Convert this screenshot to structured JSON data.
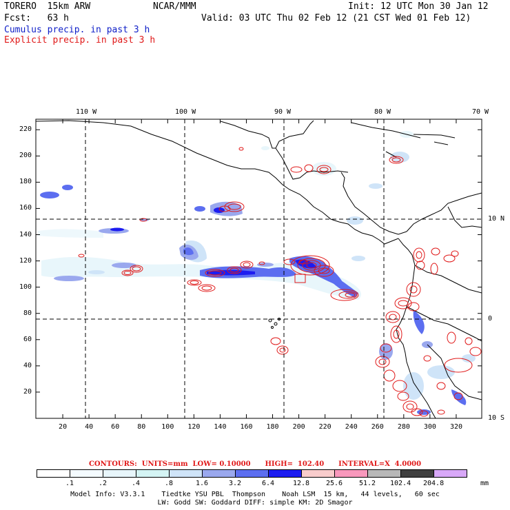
{
  "header": {
    "model": "TORERO  15km ARW",
    "org": "NCAR/MMM",
    "init": "Init: 12 UTC Mon 30 Jan 12",
    "fcst": "Fcst:   63 h",
    "valid": "Valid: 03 UTC Thu 02 Feb 12 (21 CST Wed 01 Feb 12)",
    "legend_cumulus": "Cumulus precip. in past 3 h",
    "legend_explicit": "Explicit precip. in past 3 h"
  },
  "map": {
    "lon_labels": [
      "110 W",
      "100 W",
      "90 W",
      "80 W",
      "70 W"
    ],
    "lat_labels": [
      "10 N",
      "0",
      "10 S"
    ],
    "x_ticks": [
      "20",
      "40",
      "60",
      "80",
      "100",
      "120",
      "140",
      "160",
      "180",
      "200",
      "220",
      "240",
      "260",
      "280",
      "300",
      "320"
    ],
    "y_ticks": [
      "220",
      "200",
      "180",
      "160",
      "140",
      "120",
      "100",
      "80",
      "60",
      "40",
      "20"
    ],
    "colors": {
      "cumulus": "#1a2ad8",
      "explicit": "#e01818",
      "coast": "#000000"
    }
  },
  "colorbar": {
    "contours_label": "CONTOURS:  UNITS=mm  LOW= 0.10000      HIGH=  102.40      INTERVAL=X  4.0000",
    "values": [
      ".1",
      ".2",
      ".4",
      ".8",
      "1.6",
      "3.2",
      "6.4",
      "12.8",
      "25.6",
      "51.2",
      "102.4",
      "204.8"
    ],
    "unit": "mm",
    "colors": [
      "#ffffff",
      "#f4fbff",
      "#e8f6fb",
      "#d4f4f4",
      "#cfe4f8",
      "#9aa8ee",
      "#5c6ef0",
      "#1c1cf0",
      "#f8cccc",
      "#f898bc",
      "#b8b8b8",
      "#404040",
      "#d8a8f8"
    ]
  },
  "footer": {
    "line1": "Model Info: V3.3.1    Tiedtke YSU PBL  Thompson    Noah LSM  15 km,   44 levels,   60 sec",
    "line2": "LW: Godd SW: Goddard DIFF: simple KM: 2D Smagor"
  }
}
